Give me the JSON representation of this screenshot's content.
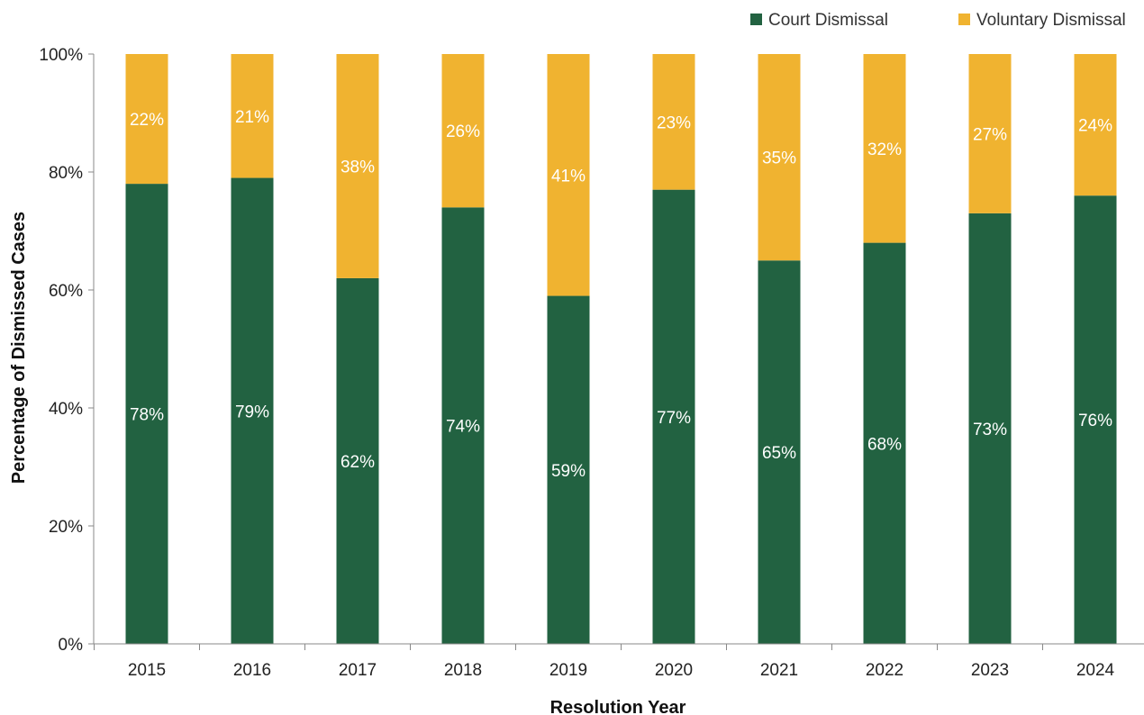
{
  "chart_data": {
    "type": "bar",
    "stacked": true,
    "categories": [
      "2015",
      "2016",
      "2017",
      "2018",
      "2019",
      "2020",
      "2021",
      "2022",
      "2023",
      "2024"
    ],
    "series": [
      {
        "name": "Court Dismissal",
        "color": "#226241",
        "values": [
          78,
          79,
          62,
          74,
          59,
          77,
          65,
          68,
          73,
          76
        ],
        "labels": [
          "78%",
          "79%",
          "62%",
          "74%",
          "59%",
          "77%",
          "65%",
          "68%",
          "73%",
          "76%"
        ]
      },
      {
        "name": "Voluntary Dismissal",
        "color": "#f0b330",
        "values": [
          22,
          21,
          38,
          26,
          41,
          23,
          35,
          32,
          27,
          24
        ],
        "labels": [
          "22%",
          "21%",
          "38%",
          "26%",
          "41%",
          "23%",
          "35%",
          "32%",
          "27%",
          "24%"
        ]
      }
    ],
    "xlabel": "Resolution Year",
    "ylabel": "Percentage of Dismissed Cases",
    "ylim": [
      0,
      100
    ],
    "yticks": [
      "0%",
      "20%",
      "40%",
      "60%",
      "80%",
      "100%"
    ],
    "grid": false,
    "legend_position": "top-right"
  }
}
